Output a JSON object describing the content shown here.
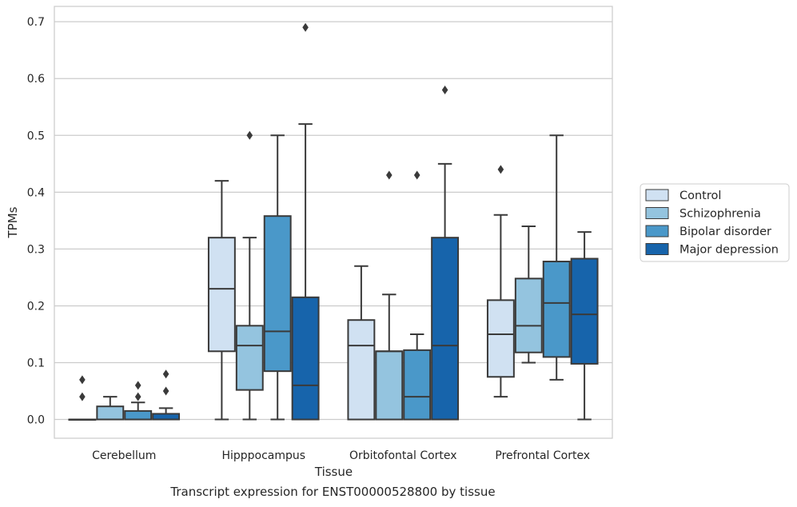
{
  "caption": "Transcript expression for ENST00000528800 by tissue",
  "chart_data": {
    "type": "box",
    "xlabel": "Tissue",
    "ylabel": "TPMs",
    "ylim": [
      -0.033,
      0.727
    ],
    "yticks": [
      0.0,
      0.1,
      0.2,
      0.3,
      0.4,
      0.5,
      0.6,
      0.7
    ],
    "ytick_labels": [
      "0.0",
      "0.1",
      "0.2",
      "0.3",
      "0.4",
      "0.5",
      "0.6",
      "0.7"
    ],
    "grid": true,
    "legend_position": "right",
    "categories": [
      "Cerebellum",
      "Hipppocampus",
      "Orbitofontal Cortex",
      "Prefrontal Cortex"
    ],
    "series": [
      {
        "name": "Control",
        "color": "#d0e1f2",
        "boxes": [
          {
            "q1": 0.0,
            "median": 0.0,
            "q3": 0.0,
            "whisker_low": 0.0,
            "whisker_high": 0.0,
            "outliers": [
              0.04,
              0.07
            ]
          },
          {
            "q1": 0.12,
            "median": 0.23,
            "q3": 0.32,
            "whisker_low": 0.0,
            "whisker_high": 0.42,
            "outliers": []
          },
          {
            "q1": 0.0,
            "median": 0.13,
            "q3": 0.175,
            "whisker_low": 0.0,
            "whisker_high": 0.27,
            "outliers": []
          },
          {
            "q1": 0.075,
            "median": 0.15,
            "q3": 0.21,
            "whisker_low": 0.04,
            "whisker_high": 0.36,
            "outliers": [
              0.44
            ]
          }
        ]
      },
      {
        "name": "Schizophrenia",
        "color": "#94c4df",
        "boxes": [
          {
            "q1": 0.0,
            "median": 0.0,
            "q3": 0.023,
            "whisker_low": 0.0,
            "whisker_high": 0.04,
            "outliers": []
          },
          {
            "q1": 0.052,
            "median": 0.13,
            "q3": 0.165,
            "whisker_low": 0.0,
            "whisker_high": 0.32,
            "outliers": [
              0.5
            ]
          },
          {
            "q1": 0.0,
            "median": 0.12,
            "q3": 0.12,
            "whisker_low": 0.0,
            "whisker_high": 0.22,
            "outliers": [
              0.43
            ]
          },
          {
            "q1": 0.118,
            "median": 0.165,
            "q3": 0.248,
            "whisker_low": 0.1,
            "whisker_high": 0.34,
            "outliers": []
          }
        ]
      },
      {
        "name": "Bipolar disorder",
        "color": "#4a98c9",
        "boxes": [
          {
            "q1": 0.0,
            "median": 0.0,
            "q3": 0.015,
            "whisker_low": 0.0,
            "whisker_high": 0.03,
            "outliers": [
              0.04,
              0.06
            ]
          },
          {
            "q1": 0.085,
            "median": 0.155,
            "q3": 0.358,
            "whisker_low": 0.0,
            "whisker_high": 0.5,
            "outliers": []
          },
          {
            "q1": 0.0,
            "median": 0.04,
            "q3": 0.122,
            "whisker_low": 0.0,
            "whisker_high": 0.15,
            "outliers": [
              0.43
            ]
          },
          {
            "q1": 0.11,
            "median": 0.205,
            "q3": 0.278,
            "whisker_low": 0.07,
            "whisker_high": 0.5,
            "outliers": []
          }
        ]
      },
      {
        "name": "Major depression",
        "color": "#1764ab",
        "boxes": [
          {
            "q1": 0.0,
            "median": 0.0,
            "q3": 0.01,
            "whisker_low": 0.0,
            "whisker_high": 0.02,
            "outliers": [
              0.05,
              0.08
            ]
          },
          {
            "q1": 0.0,
            "median": 0.06,
            "q3": 0.215,
            "whisker_low": 0.0,
            "whisker_high": 0.52,
            "outliers": [
              0.69
            ]
          },
          {
            "q1": 0.0,
            "median": 0.13,
            "q3": 0.32,
            "whisker_low": 0.0,
            "whisker_high": 0.45,
            "outliers": [
              0.58
            ]
          },
          {
            "q1": 0.098,
            "median": 0.185,
            "q3": 0.283,
            "whisker_low": 0.0,
            "whisker_high": 0.33,
            "outliers": []
          }
        ]
      }
    ]
  }
}
